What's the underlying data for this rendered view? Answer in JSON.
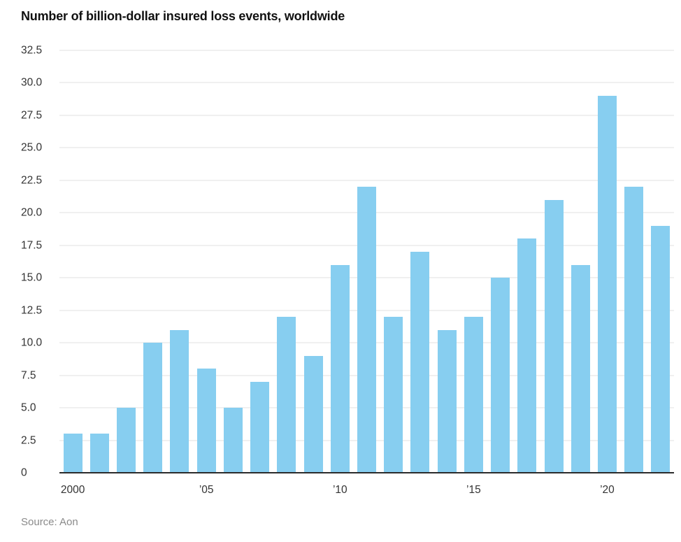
{
  "title": "Number of billion-dollar insured loss events, worldwide",
  "source": "Source: Aon",
  "colors": {
    "bar": "#87cef0",
    "grid": "#e2e2e2",
    "zero_line": "#2b2b2b"
  },
  "chart_data": {
    "type": "bar",
    "title": "Number of billion-dollar insured loss events, worldwide",
    "xlabel": "",
    "ylabel": "",
    "ylim": [
      0,
      32.5
    ],
    "grid": true,
    "legend": false,
    "categories": [
      2000,
      2001,
      2002,
      2003,
      2004,
      2005,
      2006,
      2007,
      2008,
      2009,
      2010,
      2011,
      2012,
      2013,
      2014,
      2015,
      2016,
      2017,
      2018,
      2019,
      2020,
      2021,
      2022
    ],
    "values": [
      3,
      3,
      5,
      10,
      11,
      8,
      5,
      7,
      12,
      9,
      16,
      22,
      12,
      17,
      11,
      12,
      15,
      18,
      21,
      16,
      29,
      22,
      19
    ],
    "yticks": [
      {
        "value": 0,
        "label": "0"
      },
      {
        "value": 2.5,
        "label": "2.5"
      },
      {
        "value": 5,
        "label": "5.0"
      },
      {
        "value": 7.5,
        "label": "7.5"
      },
      {
        "value": 10,
        "label": "10.0"
      },
      {
        "value": 12.5,
        "label": "12.5"
      },
      {
        "value": 15,
        "label": "15.0"
      },
      {
        "value": 17.5,
        "label": "17.5"
      },
      {
        "value": 20,
        "label": "20.0"
      },
      {
        "value": 22.5,
        "label": "22.5"
      },
      {
        "value": 25,
        "label": "25.0"
      },
      {
        "value": 27.5,
        "label": "27.5"
      },
      {
        "value": 30,
        "label": "30.0"
      },
      {
        "value": 32.5,
        "label": "32.5"
      }
    ],
    "xticks": [
      {
        "index": 0,
        "label": "2000"
      },
      {
        "index": 5,
        "label": "’05"
      },
      {
        "index": 10,
        "label": "’10"
      },
      {
        "index": 15,
        "label": "’15"
      },
      {
        "index": 20,
        "label": "’20"
      }
    ]
  }
}
